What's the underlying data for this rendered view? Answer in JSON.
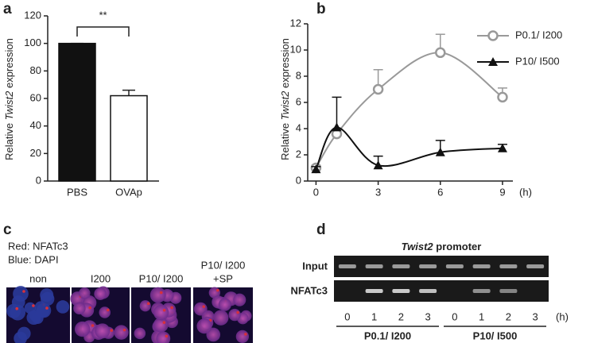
{
  "chart_data": [
    {
      "type": "bar",
      "label": "a",
      "ylabel": [
        "Relative",
        "Twist2",
        "expression"
      ],
      "categories": [
        "PBS",
        "OVAp"
      ],
      "values": [
        100,
        62
      ],
      "errors": [
        0,
        4
      ],
      "colors": [
        "#111111",
        "#ffffff"
      ],
      "ylim": [
        0,
        120
      ],
      "yticks": [
        0,
        20,
        40,
        60,
        80,
        100,
        120
      ],
      "annotation": "**"
    },
    {
      "type": "line",
      "label": "b",
      "ylabel": [
        "Relative",
        "Twist2",
        "expression"
      ],
      "x": [
        0,
        1,
        3,
        6,
        9
      ],
      "xlim": [
        -0.4,
        9.5
      ],
      "xticks": [
        0,
        3,
        6,
        9
      ],
      "xunit": "(h)",
      "ylim": [
        0,
        12
      ],
      "yticks": [
        0,
        2,
        4,
        6,
        8,
        10,
        12
      ],
      "legend": "upper right",
      "series": [
        {
          "name": "P0.1/ I200",
          "color": "#999999",
          "marker": "circle",
          "values": [
            1,
            3.6,
            7,
            9.8,
            6.4
          ],
          "errors": [
            0.2,
            0.3,
            1.5,
            1.4,
            0.7
          ]
        },
        {
          "name": "P10/ I500",
          "color": "#111111",
          "marker": "triangle",
          "values": [
            0.9,
            4.1,
            1.2,
            2.2,
            2.5
          ],
          "errors": [
            0.2,
            2.3,
            0.7,
            0.9,
            0.3
          ]
        }
      ]
    }
  ],
  "panel_c": {
    "label": "c",
    "stains": [
      "Red: NFATc3",
      "Blue: DAPI"
    ],
    "colors": [
      "#d8303a",
      "#2a3a9a"
    ],
    "conditions": [
      [
        "non"
      ],
      [
        "I200"
      ],
      [
        "P10/ I200"
      ],
      [
        "P10/ I200",
        "+SP"
      ]
    ]
  },
  "panel_d": {
    "label": "d",
    "title": [
      "Twist2",
      "promoter"
    ],
    "rows": [
      "Input",
      "NFATc3"
    ],
    "lanes": [
      0,
      1,
      2,
      3,
      0,
      1,
      2,
      3
    ],
    "unit": "(h)",
    "groups": [
      "P0.1/ I200",
      "P10/ I500"
    ]
  }
}
